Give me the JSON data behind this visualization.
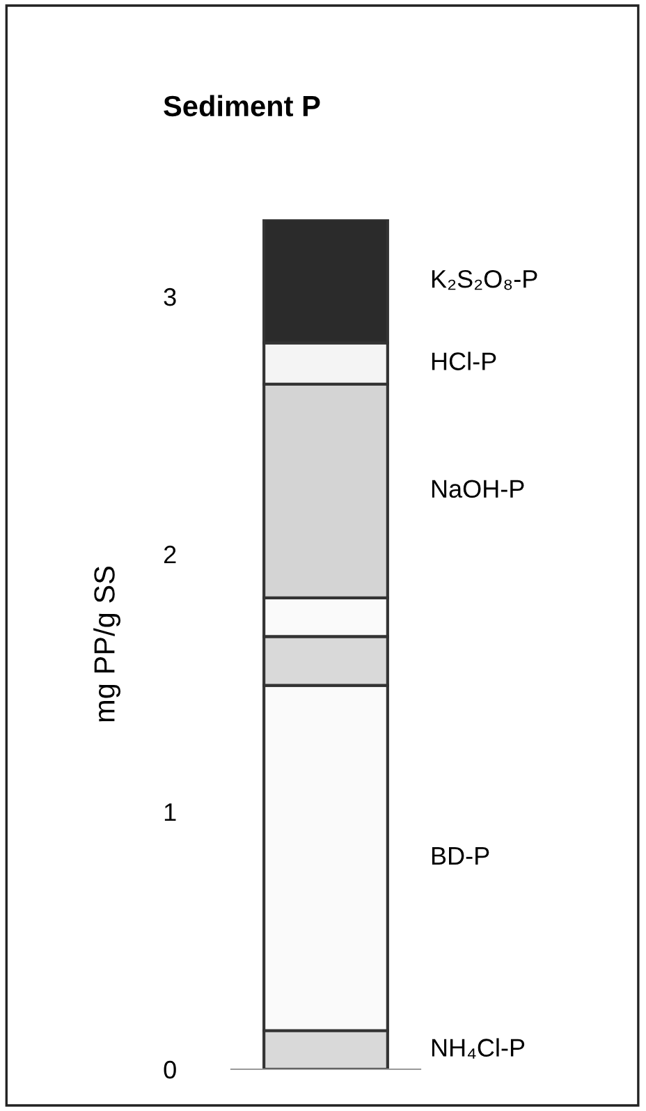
{
  "chart_data": {
    "type": "bar",
    "stacked": true,
    "title": "Sediment P",
    "ylabel": "mg PP/g SS",
    "categories": [
      null
    ],
    "series": [
      {
        "name": "NH₄Cl-P",
        "color": "#d9d9d9",
        "values": [
          0.15
        ]
      },
      {
        "name": "BD-P",
        "color": "#fafafa",
        "values": [
          1.34
        ]
      },
      {
        "color": "#d9d9d9",
        "values": [
          0.19
        ]
      },
      {
        "color": "#fafafa",
        "values": [
          0.15
        ]
      },
      {
        "name": "NaOH-P",
        "color": "#d4d4d4",
        "values": [
          0.83
        ]
      },
      {
        "name": "HCl-P",
        "color": "#f4f4f4",
        "values": [
          0.16
        ]
      },
      {
        "name": "K₂S₂O₈-P",
        "color": "#2b2b2b",
        "values": [
          0.48
        ]
      }
    ],
    "ylim": [
      0,
      3.3
    ],
    "yticks": [
      0,
      1,
      2,
      3
    ],
    "tick_labels": "y",
    "grid": false,
    "legend": false
  }
}
